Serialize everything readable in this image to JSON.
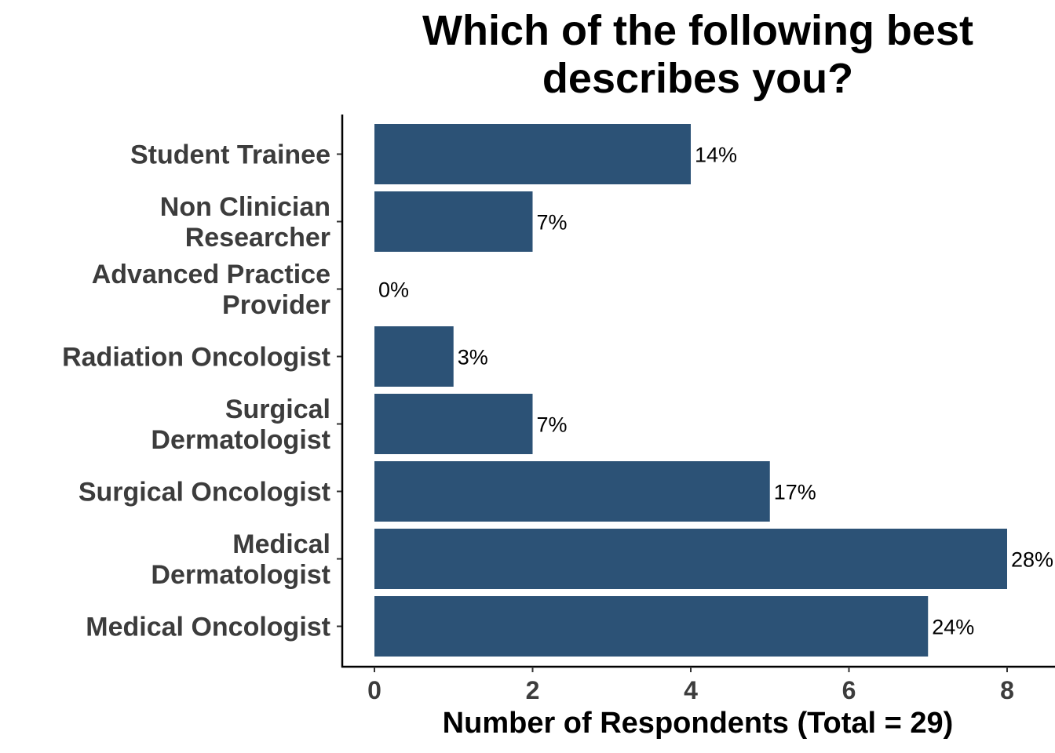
{
  "chart_data": {
    "type": "bar",
    "orientation": "horizontal",
    "title_lines": [
      "Which of the following best",
      "describes you?"
    ],
    "xlabel": "Number of Respondents (Total = 29)",
    "ylabel": "",
    "xlim": [
      0,
      8
    ],
    "x_ticks": [
      0,
      2,
      4,
      6,
      8
    ],
    "bar_color": "#2c5276",
    "grid": false,
    "categories": [
      {
        "label_lines": [
          "Student Trainee"
        ],
        "value": 4,
        "pct_label": "14%"
      },
      {
        "label_lines": [
          "Non Clinician",
          "Researcher"
        ],
        "value": 2,
        "pct_label": "7%"
      },
      {
        "label_lines": [
          "Advanced Practice",
          "Provider"
        ],
        "value": 0,
        "pct_label": "0%"
      },
      {
        "label_lines": [
          "Radiation Oncologist"
        ],
        "value": 1,
        "pct_label": "3%"
      },
      {
        "label_lines": [
          "Surgical",
          "Dermatologist"
        ],
        "value": 2,
        "pct_label": "7%"
      },
      {
        "label_lines": [
          "Surgical Oncologist"
        ],
        "value": 5,
        "pct_label": "17%"
      },
      {
        "label_lines": [
          "Medical",
          "Dermatologist"
        ],
        "value": 8,
        "pct_label": "28%"
      },
      {
        "label_lines": [
          "Medical Oncologist"
        ],
        "value": 7,
        "pct_label": "24%"
      }
    ]
  }
}
